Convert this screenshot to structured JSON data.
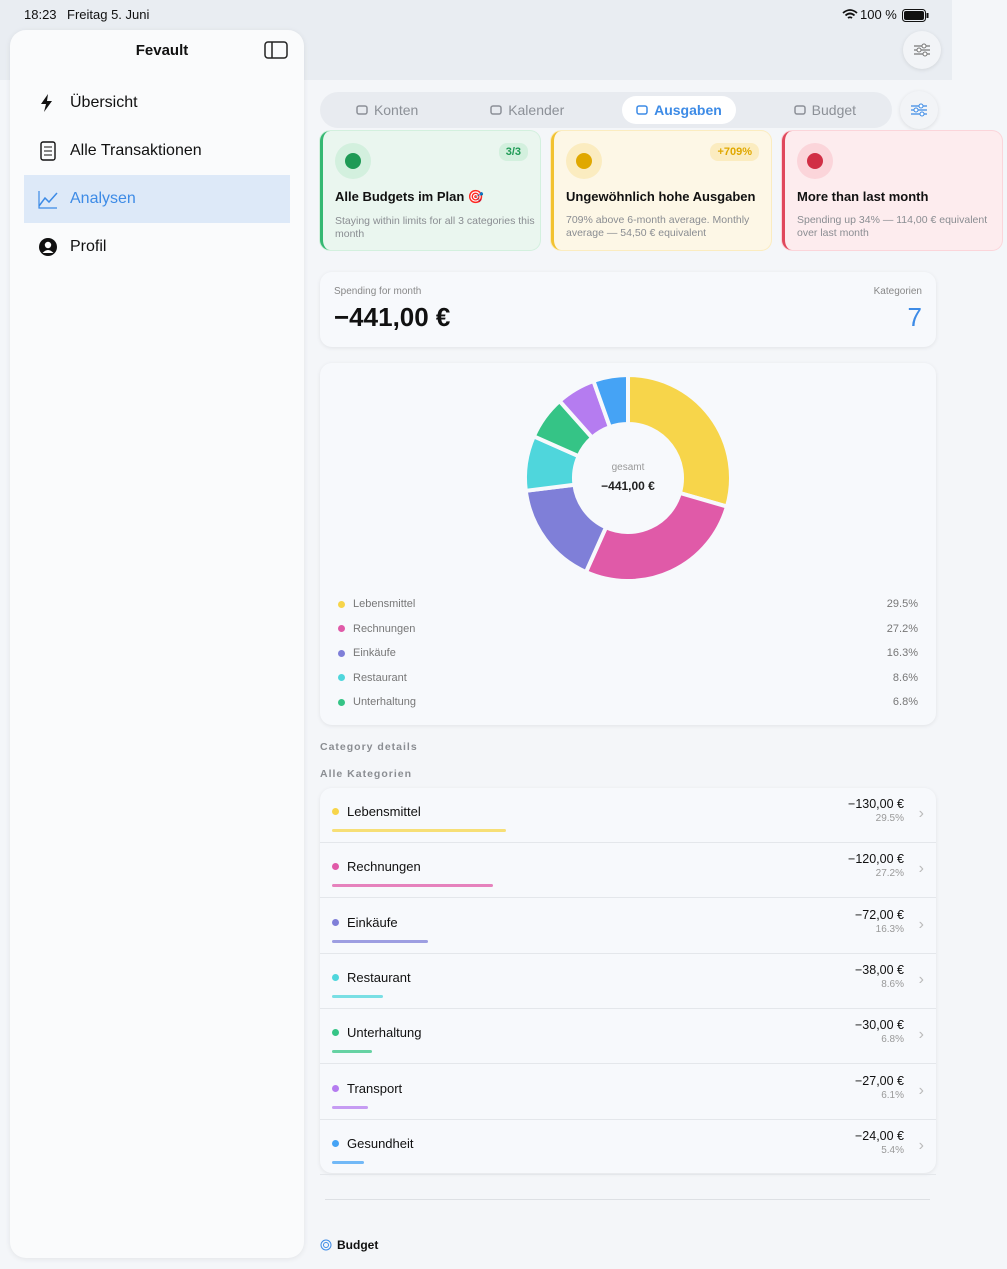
{
  "status_bar": {
    "time": "18:23",
    "date": "Freitag 5. Juni",
    "battery": "100 %"
  },
  "sidebar": {
    "title": "Fevault",
    "items": [
      "Übersicht",
      "Alle Transaktionen",
      "Analysen",
      "Profil"
    ],
    "selected": 2
  },
  "tabs": {
    "items": [
      "Konten",
      "Kalender",
      "Ausgaben",
      "Budget"
    ],
    "selected": 2
  },
  "insights": [
    {
      "badge": "3/3",
      "title": "Alle Budgets im Plan 🎯",
      "text": "Staying within limits for all 3 categories this month",
      "tone": "green"
    },
    {
      "badge": "+709%",
      "title": "Ungewöhnlich hohe Ausgaben",
      "text": "709% above 6-month average. Monthly average — 54,50 € equivalent",
      "tone": "yellow"
    },
    {
      "title": "More than last month",
      "text": "Spending up 34% — 114,00 € equivalent over last month",
      "tone": "red"
    }
  ],
  "summary": {
    "label": "Spending for month",
    "total": "−441,00 €",
    "count_label": "Kategorien",
    "count": 7
  },
  "donut": {
    "center_label": "gesamt",
    "center_value": "−441,00 €",
    "legend_count": 5
  },
  "section_title": "Category details",
  "list_title": "Alle Kategorien",
  "categories": [
    {
      "name": "Lebensmittel",
      "color": "#f7d54a",
      "amount": -130,
      "amount_label": "−130,00 €",
      "percent": "29.5%"
    },
    {
      "name": "Rechnungen",
      "color": "#e05aa8",
      "amount": -120,
      "amount_label": "−120,00 €",
      "percent": "27.2%"
    },
    {
      "name": "Einkäufe",
      "color": "#7f7fd8",
      "amount": -72,
      "amount_label": "−72,00 €",
      "percent": "16.3%"
    },
    {
      "name": "Restaurant",
      "color": "#4fd6dc",
      "amount": -38,
      "amount_label": "−38,00 €",
      "percent": "8.6%"
    },
    {
      "name": "Unterhaltung",
      "color": "#35c486",
      "amount": -30,
      "amount_label": "−30,00 €",
      "percent": "6.8%"
    },
    {
      "name": "Transport",
      "color": "#b57cf0",
      "amount": -27,
      "amount_label": "−27,00 €",
      "percent": "6.1%"
    },
    {
      "name": "Gesundheit",
      "color": "#45a3f5",
      "amount": -24,
      "amount_label": "−24,00 €",
      "percent": "5.4%"
    }
  ],
  "footer": {
    "title": "Budget"
  }
}
